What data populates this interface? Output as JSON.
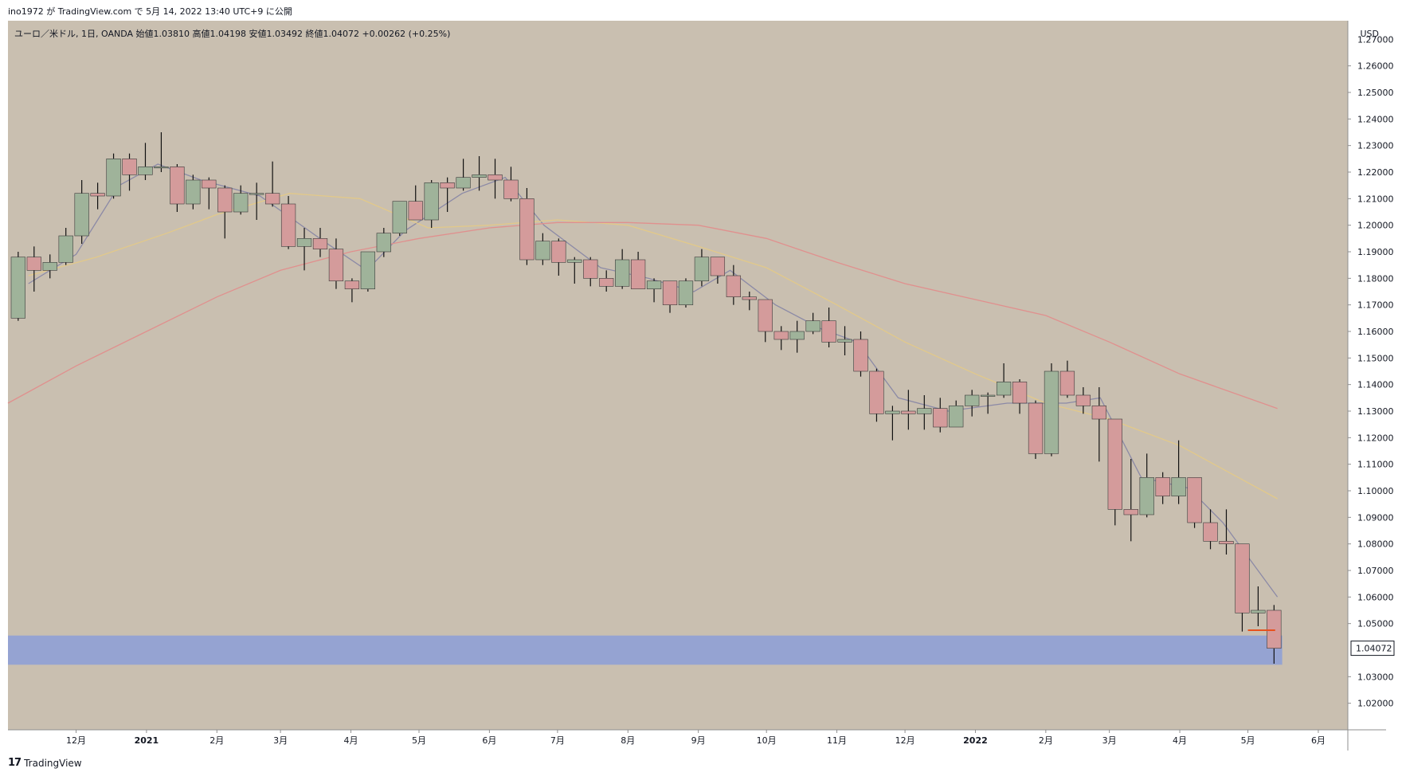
{
  "header": {
    "published_line": "ino1972 が TradingView.com で 5月 14, 2022 13:40 UTC+9 に公開"
  },
  "legend": {
    "symbol_line": "ユーロ／米ドル, 1日, OANDA  始値1.03810  高値1.04198  安値1.03492  終値1.04072  +0.00262 (+0.25%)"
  },
  "footer": {
    "brand": "TradingView",
    "logo": "17"
  },
  "colors": {
    "background": "#c9bfb0",
    "up_body": "#9fb39a",
    "down_body": "#d49b9b",
    "wick": "#111111",
    "ma_short": "#8c8aa6",
    "ma_mid": "#e2c98a",
    "ma_long": "#e0908e",
    "zone": "#8fa0d6",
    "level_line": "#e8511d"
  },
  "chart_data": {
    "type": "candlestick",
    "title": "",
    "symbol": "ユーロ／米ドル",
    "interval": "1日",
    "source": "OANDA",
    "ohlc_last": {
      "open": 1.0381,
      "high": 1.04198,
      "low": 1.03492,
      "close": 1.04072,
      "change": "+0.00262 (+0.25%)"
    },
    "current_price_label": "1.04072",
    "y_axis": {
      "unit": "USD",
      "ylim": [
        1.01,
        1.277
      ],
      "ticks": [
        "1.26000",
        "1.25000",
        "1.24000",
        "1.23000",
        "1.22000",
        "1.21000",
        "1.20000",
        "1.19000",
        "1.18000",
        "1.17000",
        "1.16000",
        "1.15000",
        "1.14000",
        "1.13000",
        "1.12000",
        "1.11000",
        "1.10000",
        "1.09000",
        "1.08000",
        "1.07000",
        "1.06000",
        "1.05000",
        "1.03000",
        "1.02000"
      ],
      "partial_top_tick": "1.27000"
    },
    "x_axis": {
      "start": "2020-11-01",
      "end": "2022-06-14",
      "ticks": [
        {
          "date": "2020-12-01",
          "label": "12月",
          "bold": false
        },
        {
          "date": "2021-01-01",
          "label": "2021",
          "bold": true
        },
        {
          "date": "2021-02-01",
          "label": "2月",
          "bold": false
        },
        {
          "date": "2021-03-01",
          "label": "3月",
          "bold": false
        },
        {
          "date": "2021-04-01",
          "label": "4月",
          "bold": false
        },
        {
          "date": "2021-05-01",
          "label": "5月",
          "bold": false
        },
        {
          "date": "2021-06-01",
          "label": "6月",
          "bold": false
        },
        {
          "date": "2021-07-01",
          "label": "7月",
          "bold": false
        },
        {
          "date": "2021-08-01",
          "label": "8月",
          "bold": false
        },
        {
          "date": "2021-09-01",
          "label": "9月",
          "bold": false
        },
        {
          "date": "2021-10-01",
          "label": "10月",
          "bold": false
        },
        {
          "date": "2021-11-01",
          "label": "11月",
          "bold": false
        },
        {
          "date": "2021-12-01",
          "label": "12月",
          "bold": false
        },
        {
          "date": "2022-01-01",
          "label": "2022",
          "bold": true
        },
        {
          "date": "2022-02-01",
          "label": "2月",
          "bold": false
        },
        {
          "date": "2022-03-01",
          "label": "3月",
          "bold": false
        },
        {
          "date": "2022-04-01",
          "label": "4月",
          "bold": false
        },
        {
          "date": "2022-05-01",
          "label": "5月",
          "bold": false
        },
        {
          "date": "2022-06-01",
          "label": "6月",
          "bold": false
        }
      ]
    },
    "weekly_candles": [
      {
        "date": "2020-11-02",
        "open": 1.165,
        "high": 1.19,
        "low": 1.164,
        "close": 1.188
      },
      {
        "date": "2020-11-09",
        "open": 1.188,
        "high": 1.192,
        "low": 1.175,
        "close": 1.183
      },
      {
        "date": "2020-11-16",
        "open": 1.183,
        "high": 1.189,
        "low": 1.18,
        "close": 1.186
      },
      {
        "date": "2020-11-23",
        "open": 1.186,
        "high": 1.199,
        "low": 1.185,
        "close": 1.196
      },
      {
        "date": "2020-11-30",
        "open": 1.196,
        "high": 1.217,
        "low": 1.193,
        "close": 1.212
      },
      {
        "date": "2020-12-07",
        "open": 1.212,
        "high": 1.216,
        "low": 1.206,
        "close": 1.211
      },
      {
        "date": "2020-12-14",
        "open": 1.211,
        "high": 1.227,
        "low": 1.21,
        "close": 1.225
      },
      {
        "date": "2020-12-21",
        "open": 1.225,
        "high": 1.227,
        "low": 1.213,
        "close": 1.219
      },
      {
        "date": "2020-12-28",
        "open": 1.219,
        "high": 1.231,
        "low": 1.217,
        "close": 1.222
      },
      {
        "date": "2021-01-04",
        "open": 1.222,
        "high": 1.235,
        "low": 1.22,
        "close": 1.222
      },
      {
        "date": "2021-01-11",
        "open": 1.222,
        "high": 1.223,
        "low": 1.205,
        "close": 1.208
      },
      {
        "date": "2021-01-18",
        "open": 1.208,
        "high": 1.219,
        "low": 1.206,
        "close": 1.217
      },
      {
        "date": "2021-01-25",
        "open": 1.217,
        "high": 1.218,
        "low": 1.206,
        "close": 1.214
      },
      {
        "date": "2021-02-01",
        "open": 1.214,
        "high": 1.215,
        "low": 1.195,
        "close": 1.205
      },
      {
        "date": "2021-02-08",
        "open": 1.205,
        "high": 1.215,
        "low": 1.204,
        "close": 1.212
      },
      {
        "date": "2021-02-15",
        "open": 1.212,
        "high": 1.216,
        "low": 1.202,
        "close": 1.212
      },
      {
        "date": "2021-02-22",
        "open": 1.212,
        "high": 1.224,
        "low": 1.207,
        "close": 1.208
      },
      {
        "date": "2021-03-01",
        "open": 1.208,
        "high": 1.211,
        "low": 1.191,
        "close": 1.192
      },
      {
        "date": "2021-03-08",
        "open": 1.192,
        "high": 1.199,
        "low": 1.183,
        "close": 1.195
      },
      {
        "date": "2021-03-15",
        "open": 1.195,
        "high": 1.199,
        "low": 1.188,
        "close": 1.191
      },
      {
        "date": "2021-03-22",
        "open": 1.191,
        "high": 1.195,
        "low": 1.176,
        "close": 1.179
      },
      {
        "date": "2021-03-29",
        "open": 1.179,
        "high": 1.18,
        "low": 1.171,
        "close": 1.176
      },
      {
        "date": "2021-04-05",
        "open": 1.176,
        "high": 1.19,
        "low": 1.175,
        "close": 1.19
      },
      {
        "date": "2021-04-12",
        "open": 1.19,
        "high": 1.199,
        "low": 1.188,
        "close": 1.197
      },
      {
        "date": "2021-04-19",
        "open": 1.197,
        "high": 1.207,
        "low": 1.196,
        "close": 1.209
      },
      {
        "date": "2021-04-26",
        "open": 1.209,
        "high": 1.215,
        "low": 1.202,
        "close": 1.202
      },
      {
        "date": "2021-05-03",
        "open": 1.202,
        "high": 1.217,
        "low": 1.199,
        "close": 1.216
      },
      {
        "date": "2021-05-10",
        "open": 1.216,
        "high": 1.218,
        "low": 1.205,
        "close": 1.214
      },
      {
        "date": "2021-05-17",
        "open": 1.214,
        "high": 1.225,
        "low": 1.213,
        "close": 1.218
      },
      {
        "date": "2021-05-24",
        "open": 1.218,
        "high": 1.226,
        "low": 1.213,
        "close": 1.219
      },
      {
        "date": "2021-05-31",
        "open": 1.219,
        "high": 1.225,
        "low": 1.21,
        "close": 1.217
      },
      {
        "date": "2021-06-07",
        "open": 1.217,
        "high": 1.222,
        "low": 1.209,
        "close": 1.21
      },
      {
        "date": "2021-06-14",
        "open": 1.21,
        "high": 1.214,
        "low": 1.185,
        "close": 1.187
      },
      {
        "date": "2021-06-21",
        "open": 1.187,
        "high": 1.197,
        "low": 1.185,
        "close": 1.194
      },
      {
        "date": "2021-06-28",
        "open": 1.194,
        "high": 1.195,
        "low": 1.181,
        "close": 1.186
      },
      {
        "date": "2021-07-05",
        "open": 1.186,
        "high": 1.188,
        "low": 1.178,
        "close": 1.187
      },
      {
        "date": "2021-07-12",
        "open": 1.187,
        "high": 1.188,
        "low": 1.177,
        "close": 1.18
      },
      {
        "date": "2021-07-19",
        "open": 1.18,
        "high": 1.183,
        "low": 1.175,
        "close": 1.177
      },
      {
        "date": "2021-07-26",
        "open": 1.177,
        "high": 1.191,
        "low": 1.176,
        "close": 1.187
      },
      {
        "date": "2021-08-02",
        "open": 1.187,
        "high": 1.19,
        "low": 1.177,
        "close": 1.176
      },
      {
        "date": "2021-08-09",
        "open": 1.176,
        "high": 1.18,
        "low": 1.171,
        "close": 1.179
      },
      {
        "date": "2021-08-16",
        "open": 1.179,
        "high": 1.179,
        "low": 1.167,
        "close": 1.17
      },
      {
        "date": "2021-08-23",
        "open": 1.17,
        "high": 1.18,
        "low": 1.169,
        "close": 1.179
      },
      {
        "date": "2021-08-30",
        "open": 1.179,
        "high": 1.191,
        "low": 1.177,
        "close": 1.188
      },
      {
        "date": "2021-09-06",
        "open": 1.188,
        "high": 1.188,
        "low": 1.178,
        "close": 1.181
      },
      {
        "date": "2021-09-13",
        "open": 1.181,
        "high": 1.185,
        "low": 1.17,
        "close": 1.173
      },
      {
        "date": "2021-09-20",
        "open": 1.173,
        "high": 1.175,
        "low": 1.168,
        "close": 1.172
      },
      {
        "date": "2021-09-27",
        "open": 1.172,
        "high": 1.172,
        "low": 1.156,
        "close": 1.16
      },
      {
        "date": "2021-10-04",
        "open": 1.16,
        "high": 1.162,
        "low": 1.153,
        "close": 1.157
      },
      {
        "date": "2021-10-11",
        "open": 1.157,
        "high": 1.164,
        "low": 1.152,
        "close": 1.16
      },
      {
        "date": "2021-10-18",
        "open": 1.16,
        "high": 1.167,
        "low": 1.159,
        "close": 1.164
      },
      {
        "date": "2021-10-25",
        "open": 1.164,
        "high": 1.169,
        "low": 1.154,
        "close": 1.156
      },
      {
        "date": "2021-11-01",
        "open": 1.156,
        "high": 1.162,
        "low": 1.151,
        "close": 1.157
      },
      {
        "date": "2021-11-08",
        "open": 1.157,
        "high": 1.16,
        "low": 1.143,
        "close": 1.145
      },
      {
        "date": "2021-11-15",
        "open": 1.145,
        "high": 1.146,
        "low": 1.126,
        "close": 1.129
      },
      {
        "date": "2021-11-22",
        "open": 1.129,
        "high": 1.132,
        "low": 1.119,
        "close": 1.13
      },
      {
        "date": "2021-11-29",
        "open": 1.13,
        "high": 1.138,
        "low": 1.123,
        "close": 1.129
      },
      {
        "date": "2021-12-06",
        "open": 1.129,
        "high": 1.136,
        "low": 1.123,
        "close": 1.131
      },
      {
        "date": "2021-12-13",
        "open": 1.131,
        "high": 1.135,
        "low": 1.122,
        "close": 1.124
      },
      {
        "date": "2021-12-20",
        "open": 1.124,
        "high": 1.134,
        "low": 1.124,
        "close": 1.132
      },
      {
        "date": "2021-12-27",
        "open": 1.132,
        "high": 1.138,
        "low": 1.128,
        "close": 1.136
      },
      {
        "date": "2022-01-03",
        "open": 1.136,
        "high": 1.137,
        "low": 1.129,
        "close": 1.136
      },
      {
        "date": "2022-01-10",
        "open": 1.136,
        "high": 1.148,
        "low": 1.135,
        "close": 1.141
      },
      {
        "date": "2022-01-17",
        "open": 1.141,
        "high": 1.142,
        "low": 1.129,
        "close": 1.133
      },
      {
        "date": "2022-01-24",
        "open": 1.133,
        "high": 1.134,
        "low": 1.112,
        "close": 1.114
      },
      {
        "date": "2022-01-31",
        "open": 1.114,
        "high": 1.148,
        "low": 1.113,
        "close": 1.145
      },
      {
        "date": "2022-02-07",
        "open": 1.145,
        "high": 1.149,
        "low": 1.135,
        "close": 1.136
      },
      {
        "date": "2022-02-14",
        "open": 1.136,
        "high": 1.139,
        "low": 1.129,
        "close": 1.132
      },
      {
        "date": "2022-02-21",
        "open": 1.132,
        "high": 1.139,
        "low": 1.111,
        "close": 1.127
      },
      {
        "date": "2022-02-28",
        "open": 1.127,
        "high": 1.127,
        "low": 1.087,
        "close": 1.093
      },
      {
        "date": "2022-03-07",
        "open": 1.093,
        "high": 1.112,
        "low": 1.081,
        "close": 1.091
      },
      {
        "date": "2022-03-14",
        "open": 1.091,
        "high": 1.114,
        "low": 1.09,
        "close": 1.105
      },
      {
        "date": "2022-03-21",
        "open": 1.105,
        "high": 1.107,
        "low": 1.095,
        "close": 1.098
      },
      {
        "date": "2022-03-28",
        "open": 1.098,
        "high": 1.119,
        "low": 1.095,
        "close": 1.105
      },
      {
        "date": "2022-04-04",
        "open": 1.105,
        "high": 1.105,
        "low": 1.086,
        "close": 1.088
      },
      {
        "date": "2022-04-11",
        "open": 1.088,
        "high": 1.093,
        "low": 1.078,
        "close": 1.081
      },
      {
        "date": "2022-04-18",
        "open": 1.081,
        "high": 1.093,
        "low": 1.076,
        "close": 1.08
      },
      {
        "date": "2022-04-25",
        "open": 1.08,
        "high": 1.08,
        "low": 1.047,
        "close": 1.054
      },
      {
        "date": "2022-05-02",
        "open": 1.054,
        "high": 1.064,
        "low": 1.049,
        "close": 1.055
      },
      {
        "date": "2022-05-09",
        "open": 1.055,
        "high": 1.057,
        "low": 1.0349,
        "close": 1.0407
      }
    ],
    "moving_averages": [
      {
        "name": "",
        "color_key": "ma_short",
        "points": [
          [
            "2020-11-10",
            1.178
          ],
          [
            "2020-12-01",
            1.189
          ],
          [
            "2020-12-20",
            1.215
          ],
          [
            "2021-01-06",
            1.223
          ],
          [
            "2021-01-25",
            1.217
          ],
          [
            "2021-02-20",
            1.211
          ],
          [
            "2021-03-20",
            1.194
          ],
          [
            "2021-04-08",
            1.183
          ],
          [
            "2021-04-25",
            1.198
          ],
          [
            "2021-05-20",
            1.212
          ],
          [
            "2021-06-08",
            1.218
          ],
          [
            "2021-06-25",
            1.2
          ],
          [
            "2021-07-20",
            1.184
          ],
          [
            "2021-08-10",
            1.18
          ],
          [
            "2021-08-30",
            1.175
          ],
          [
            "2021-09-15",
            1.183
          ],
          [
            "2021-10-05",
            1.17
          ],
          [
            "2021-10-25",
            1.161
          ],
          [
            "2021-11-10",
            1.156
          ],
          [
            "2021-11-28",
            1.135
          ],
          [
            "2021-12-20",
            1.13
          ],
          [
            "2022-01-15",
            1.133
          ],
          [
            "2022-02-10",
            1.133
          ],
          [
            "2022-02-25",
            1.135
          ],
          [
            "2022-03-15",
            1.105
          ],
          [
            "2022-04-05",
            1.101
          ],
          [
            "2022-04-20",
            1.088
          ],
          [
            "2022-05-14",
            1.06
          ]
        ]
      },
      {
        "name": "",
        "color_key": "ma_mid",
        "points": [
          [
            "2020-11-10",
            1.181
          ],
          [
            "2020-12-10",
            1.188
          ],
          [
            "2021-01-10",
            1.197
          ],
          [
            "2021-02-01",
            1.204
          ],
          [
            "2021-03-05",
            1.212
          ],
          [
            "2021-04-05",
            1.21
          ],
          [
            "2021-05-05",
            1.199
          ],
          [
            "2021-06-01",
            1.2
          ],
          [
            "2021-07-01",
            1.202
          ],
          [
            "2021-08-01",
            1.2
          ],
          [
            "2021-09-01",
            1.192
          ],
          [
            "2021-10-01",
            1.184
          ],
          [
            "2021-11-01",
            1.17
          ],
          [
            "2021-12-01",
            1.156
          ],
          [
            "2022-01-01",
            1.144
          ],
          [
            "2022-02-01",
            1.133
          ],
          [
            "2022-03-01",
            1.127
          ],
          [
            "2022-04-01",
            1.117
          ],
          [
            "2022-05-14",
            1.097
          ]
        ]
      },
      {
        "name": "",
        "color_key": "ma_long",
        "points": [
          [
            "2020-11-01",
            1.133
          ],
          [
            "2020-12-01",
            1.147
          ],
          [
            "2021-01-01",
            1.16
          ],
          [
            "2021-02-01",
            1.173
          ],
          [
            "2021-03-01",
            1.183
          ],
          [
            "2021-04-01",
            1.19
          ],
          [
            "2021-05-01",
            1.195
          ],
          [
            "2021-06-01",
            1.199
          ],
          [
            "2021-07-01",
            1.201
          ],
          [
            "2021-08-01",
            1.201
          ],
          [
            "2021-09-01",
            1.2
          ],
          [
            "2021-10-01",
            1.195
          ],
          [
            "2021-11-01",
            1.186
          ],
          [
            "2021-12-01",
            1.178
          ],
          [
            "2022-01-01",
            1.172
          ],
          [
            "2022-02-01",
            1.166
          ],
          [
            "2022-03-01",
            1.156
          ],
          [
            "2022-04-01",
            1.144
          ],
          [
            "2022-05-14",
            1.131
          ]
        ]
      }
    ],
    "annotations": {
      "support_zone": {
        "from": "2020-11-01",
        "to": "2022-05-14",
        "top": 1.0455,
        "bottom": 1.0345
      },
      "level_line": {
        "from": "2022-05-01",
        "to": "2022-05-13",
        "price": 1.0475
      }
    }
  }
}
